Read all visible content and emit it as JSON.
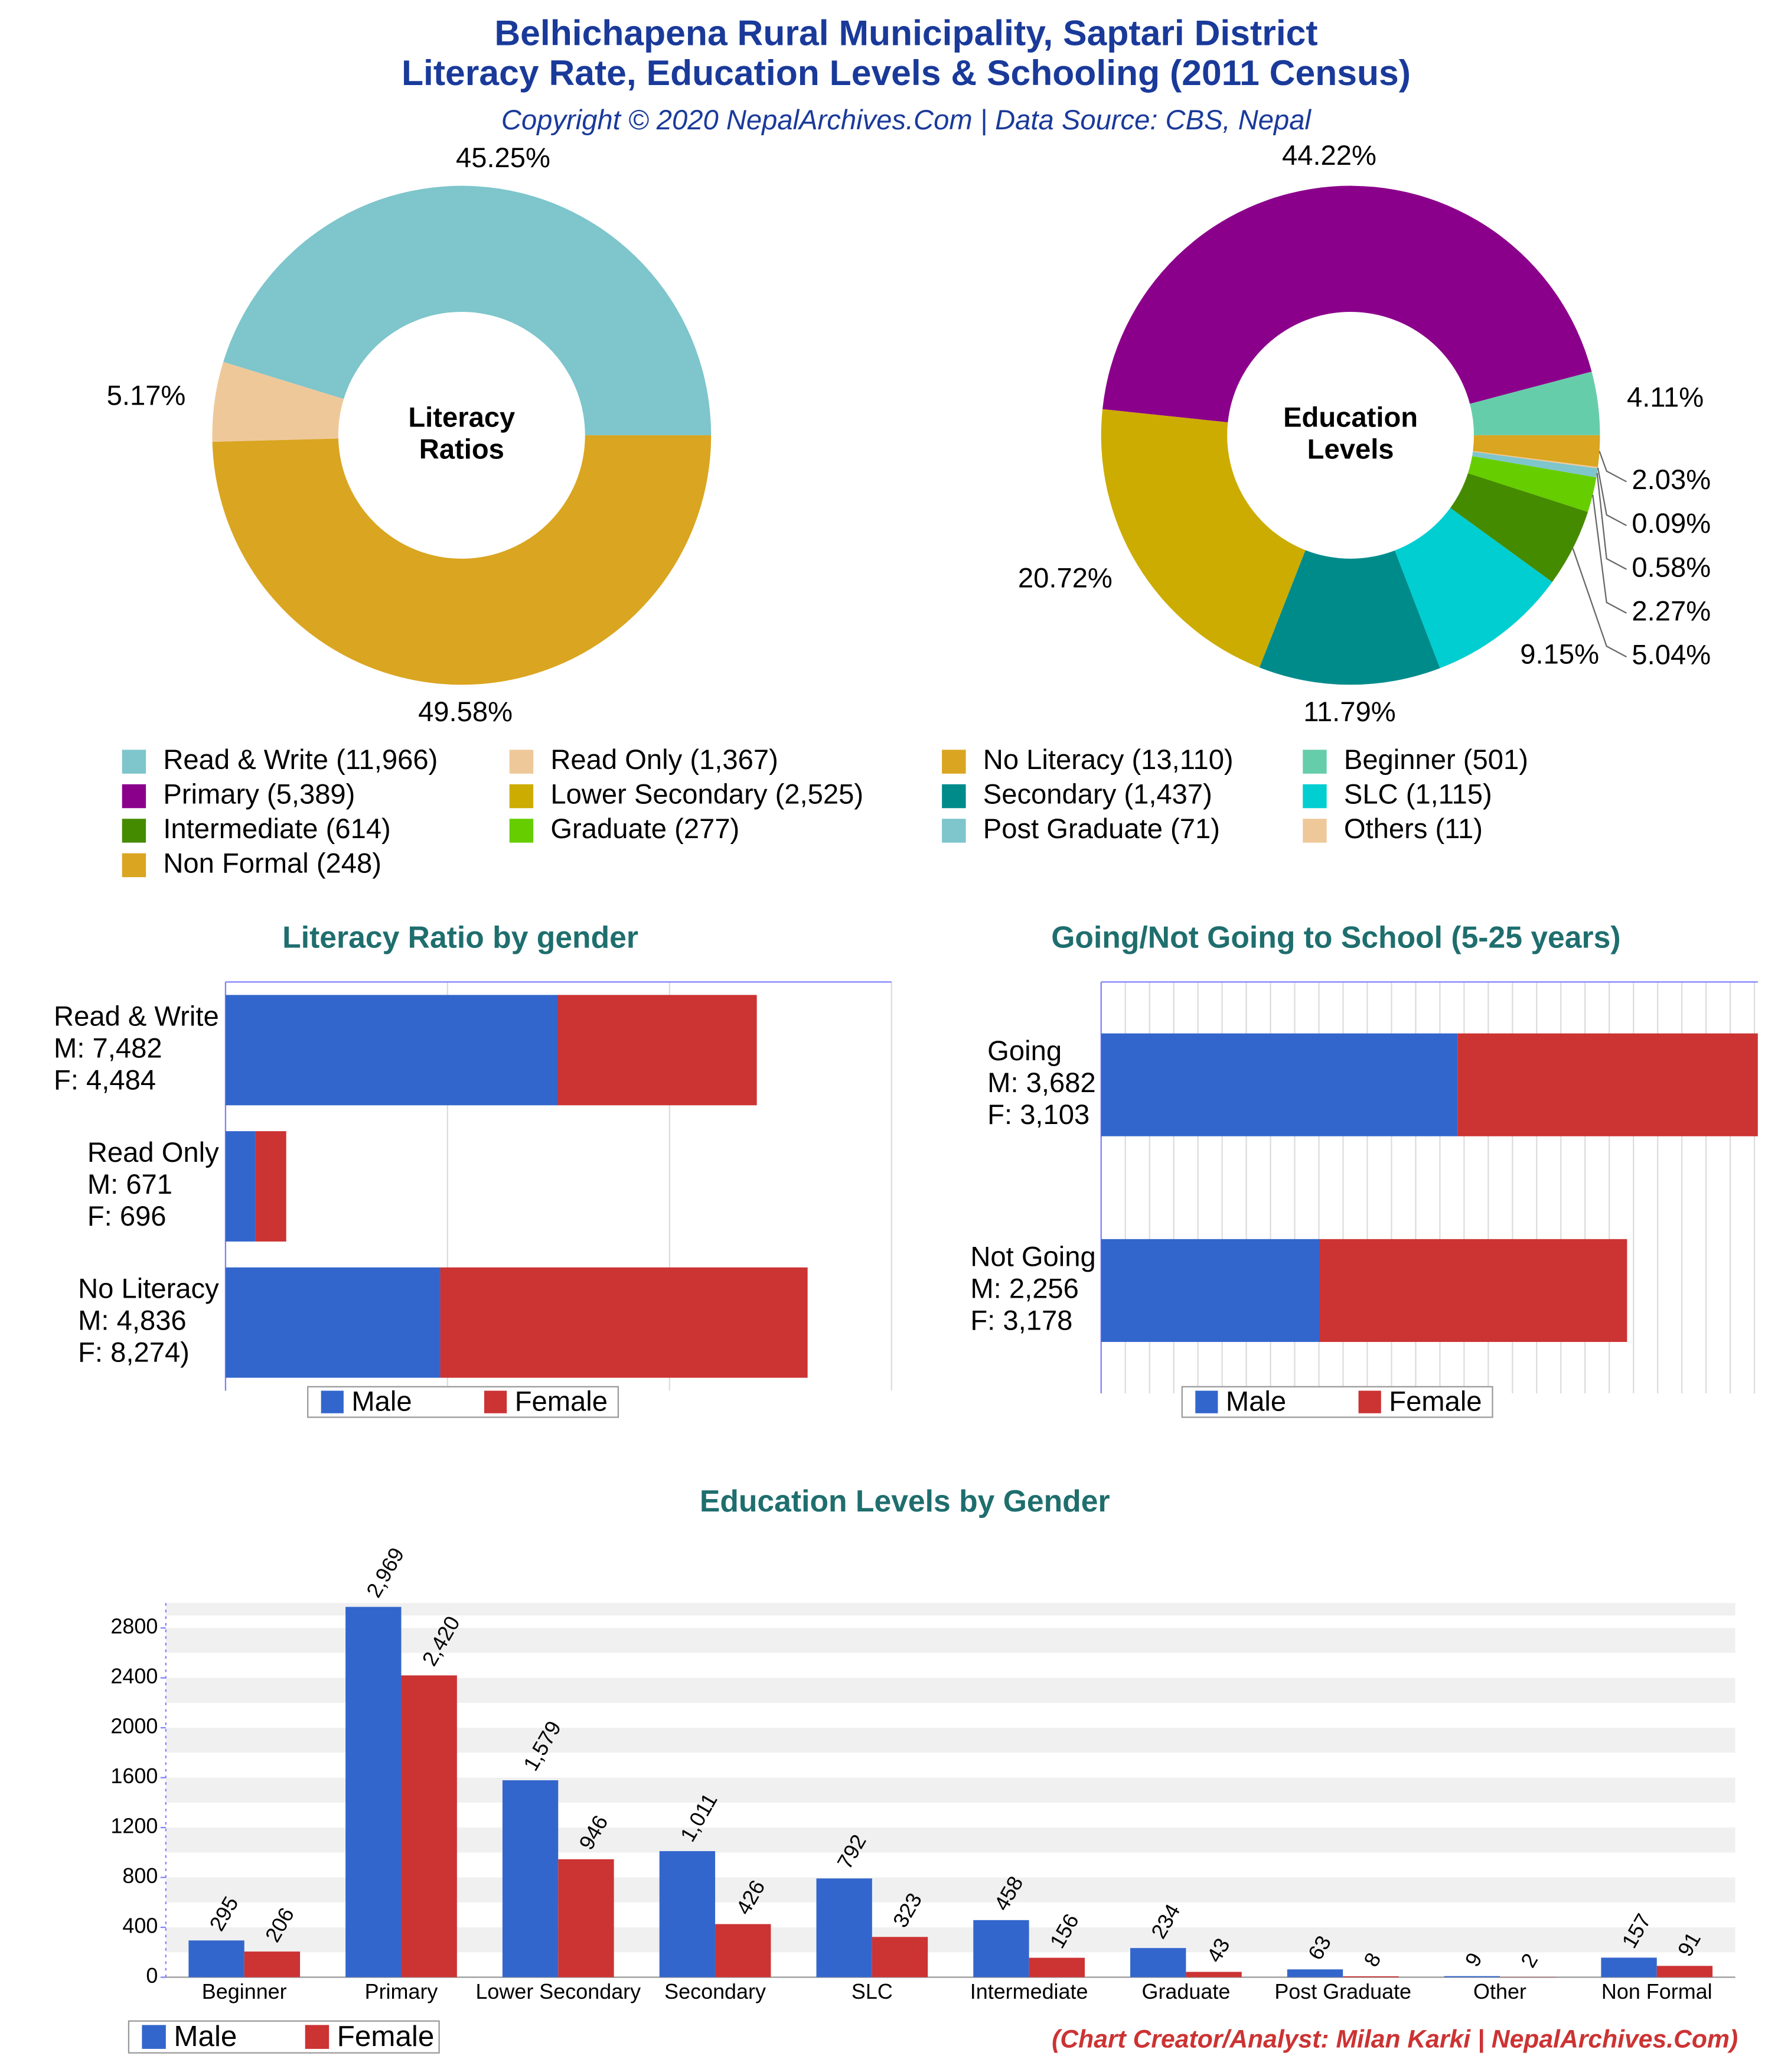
{
  "title": [
    "Belhichapena Rural Municipality, Saptari District",
    "Literacy Rate, Education Levels & Schooling (2011 Census)"
  ],
  "subtitle": "Copyright © 2020 NepalArchives.Com | Data Source: CBS, Nepal",
  "credit": "(Chart Creator/Analyst: Milan Karki | NepalArchives.Com)",
  "chart_data": [
    {
      "type": "pie",
      "center_label": [
        "Literacy",
        "Ratios"
      ],
      "categories": [
        "Read & Write (11,966)",
        "Read Only (1,367)",
        "No Literacy (13,110)"
      ],
      "values": [
        45.25,
        5.17,
        49.58
      ],
      "value_labels": [
        "45.25%",
        "5.17%",
        "49.58%"
      ],
      "colors": [
        "#7ec5cc",
        "#efc89a",
        "#daa520"
      ]
    },
    {
      "type": "pie",
      "center_label": [
        "Education",
        "Levels"
      ],
      "categories": [
        "Beginner (501)",
        "Primary (5,389)",
        "Lower Secondary (2,525)",
        "Secondary (1,437)",
        "SLC (1,115)",
        "Intermediate (614)",
        "Graduate (277)",
        "Post Graduate (71)",
        "Others (11)",
        "Non Formal (248)"
      ],
      "values": [
        4.11,
        44.22,
        20.72,
        11.79,
        9.15,
        5.04,
        2.27,
        0.58,
        0.09,
        2.03
      ],
      "value_labels": [
        "4.11%",
        "44.22%",
        "20.72%",
        "11.79%",
        "9.15%",
        "5.04%",
        "2.27%",
        "0.58%",
        "0.09%",
        "2.03%"
      ],
      "colors": [
        "#66cdaa",
        "#8b008b",
        "#ccac00",
        "#008b8b",
        "#00ced1",
        "#458b00",
        "#66cd00",
        "#7ec5cc",
        "#efc89a",
        "#daa520"
      ]
    },
    {
      "type": "bar",
      "orientation": "horizontal",
      "stacked": true,
      "title": "Literacy Ratio by gender",
      "categories": [
        "Read & Write",
        "Read Only",
        "No Literacy"
      ],
      "series": [
        {
          "name": "Male",
          "color": "#3366cc",
          "values": [
            7482,
            671,
            4836
          ],
          "value_labels": [
            "M: 7,482",
            "M: 671",
            "M: 4,836"
          ]
        },
        {
          "name": "Female",
          "color": "#cc3333",
          "values": [
            4484,
            696,
            8274
          ],
          "value_labels": [
            "F: 4,484",
            "F: 696",
            "F: 8,274)"
          ]
        }
      ],
      "xlim": [
        0,
        15000
      ],
      "xticks": [
        0,
        5000,
        10000,
        15000
      ],
      "grid": true,
      "legend": "bottom"
    },
    {
      "type": "bar",
      "orientation": "horizontal",
      "stacked": true,
      "title": "Going/Not Going to School (5-25 years)",
      "categories": [
        "Going",
        "Not Going"
      ],
      "series": [
        {
          "name": "Male",
          "color": "#3366cc",
          "values": [
            3682,
            2256
          ],
          "value_labels": [
            "M: 3,682",
            "M: 2,256"
          ]
        },
        {
          "name": "Female",
          "color": "#cc3333",
          "values": [
            3103,
            3178
          ],
          "value_labels": [
            "F: 3,103",
            "F: 3,178"
          ]
        }
      ],
      "xlim": [
        0,
        6785
      ],
      "xticks": [
        0,
        250,
        500,
        750,
        1000,
        1250,
        1500,
        1750,
        2000,
        2250,
        2500,
        2750,
        3000,
        3250,
        3500,
        3750,
        4000,
        4250,
        4500,
        4750,
        5000,
        5250,
        5500,
        5750,
        6000,
        6250,
        6500,
        6750
      ],
      "grid": true,
      "legend": "bottom"
    },
    {
      "type": "bar",
      "orientation": "vertical",
      "stacked": false,
      "title": "Education Levels by Gender",
      "categories": [
        "Beginner",
        "Primary",
        "Lower Secondary",
        "Secondary",
        "SLC",
        "Intermediate",
        "Graduate",
        "Post Graduate",
        "Other",
        "Non Formal"
      ],
      "series": [
        {
          "name": "Male",
          "color": "#3366cc",
          "values": [
            295,
            2969,
            1579,
            1011,
            792,
            458,
            234,
            63,
            9,
            157
          ],
          "value_labels": [
            "295",
            "2,969",
            "1,579",
            "1,011",
            "792",
            "458",
            "234",
            "63",
            "9",
            "157"
          ]
        },
        {
          "name": "Female",
          "color": "#cc3333",
          "values": [
            206,
            2420,
            946,
            426,
            323,
            156,
            43,
            8,
            2,
            91
          ],
          "value_labels": [
            "206",
            "2,420",
            "946",
            "426",
            "323",
            "156",
            "43",
            "8",
            "2",
            "91"
          ]
        }
      ],
      "ylim": [
        0,
        3000
      ],
      "yticks": [
        0,
        400,
        800,
        1200,
        1600,
        2000,
        2400,
        2800
      ],
      "grid": true,
      "legend": "bottom-left"
    }
  ]
}
